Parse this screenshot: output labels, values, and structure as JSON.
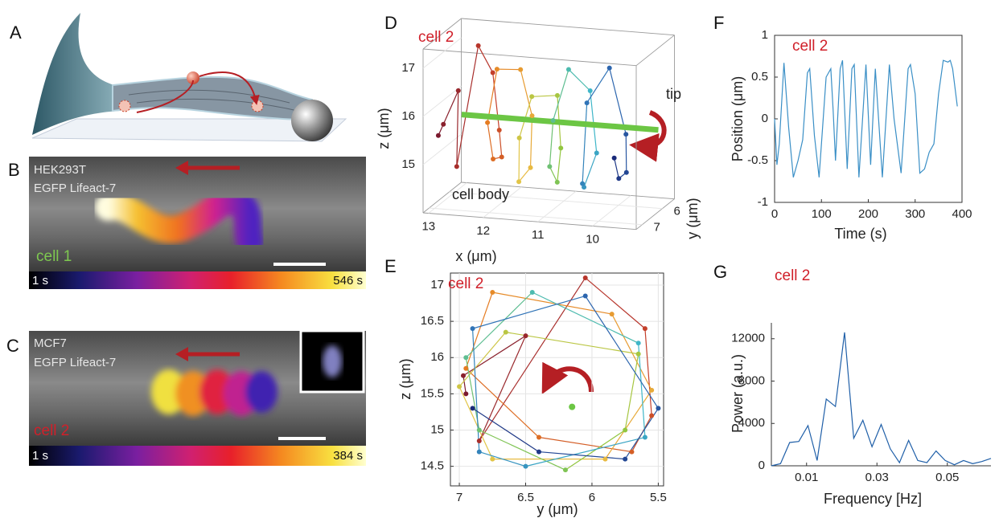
{
  "panel_labels": [
    "A",
    "B",
    "C",
    "D",
    "E",
    "F",
    "G"
  ],
  "panel_b": {
    "cell_line": "HEK293T",
    "marker": "EGFP Lifeact-7",
    "cell": "cell 1",
    "time_start": "1 s",
    "time_end": "546 s"
  },
  "panel_c": {
    "cell_line": "MCF7",
    "marker": "EGFP Lifeact-7",
    "cell": "cell 2",
    "time_start": "1 s",
    "time_end": "384 s"
  },
  "chart_data": [
    {
      "type": "scatter3d",
      "label": "cell 2",
      "annotations": [
        "tip",
        "cell body"
      ],
      "x_label": "x (μm)",
      "y_label": "y (μm)",
      "z_label": "z (μm)",
      "xlim": [
        13.1,
        9.2
      ],
      "ylim": [
        7.3,
        5.4
      ],
      "zlim": [
        14,
        17.4
      ],
      "xticks": [
        13,
        12,
        11,
        10
      ],
      "yticks": [
        6,
        7
      ],
      "zticks": [
        15,
        16,
        17
      ],
      "colors": [
        "#7b1a2e",
        "#c0392b",
        "#e67e22",
        "#e8c547",
        "#8cc63f",
        "#3fb8c9",
        "#2f6db5",
        "#1a2a7a"
      ],
      "x": [
        12.95,
        12.85,
        12.75,
        12.65,
        12.55,
        12.45,
        12.35,
        12.25,
        12.15,
        12.05,
        11.95,
        11.85,
        11.75,
        11.65,
        11.55,
        11.45,
        11.35,
        11.25,
        11.15,
        11.05,
        10.95,
        10.85,
        10.75,
        10.65,
        10.55,
        10.45,
        10.35,
        10.25,
        10.15,
        10.05,
        9.95,
        9.85,
        9.75
      ],
      "y": [
        6.95,
        6.97,
        6.5,
        6.85,
        6.05,
        5.6,
        5.55,
        5.7,
        6.4,
        6.95,
        6.75,
        5.85,
        5.55,
        5.9,
        6.75,
        7.0,
        6.65,
        5.65,
        5.75,
        6.2,
        6.85,
        6.95,
        6.45,
        5.65,
        5.6,
        6.5,
        6.85,
        6.9,
        6.05,
        5.5,
        5.75,
        6.4,
        6.9
      ],
      "z": [
        15.5,
        15.75,
        16.3,
        14.85,
        17.1,
        16.4,
        15.2,
        14.7,
        14.9,
        15.85,
        16.9,
        16.6,
        15.55,
        14.6,
        14.6,
        15.6,
        16.35,
        16.05,
        15.0,
        14.45,
        15.0,
        16.0,
        16.9,
        16.2,
        14.9,
        14.5,
        14.7,
        16.4,
        16.85,
        15.3,
        14.6,
        14.7,
        15.3
      ],
      "axis_line": {
        "color": "#6cc644",
        "x": [
          12.8,
          9.2
        ],
        "y": [
          6.2,
          6.2
        ],
        "z": [
          15.7,
          15.7
        ]
      }
    },
    {
      "type": "scatter_path",
      "label": "cell 2",
      "x_label": "y (μm)",
      "y_label": "z (μm)",
      "xlim": [
        7.067,
        5.46
      ],
      "ylim": [
        14.23,
        17.166
      ],
      "xticks": [
        7,
        6.5,
        6,
        5.5
      ],
      "yticks": [
        14.5,
        15,
        15.5,
        16,
        16.5,
        17
      ],
      "grid": true,
      "colors": [
        "#7b1a2e",
        "#c0392b",
        "#e67e22",
        "#e8c547",
        "#8cc63f",
        "#3fb8c9",
        "#2f6db5",
        "#1a2a7a"
      ],
      "x": [
        6.95,
        6.97,
        6.5,
        6.85,
        6.05,
        5.6,
        5.55,
        5.7,
        6.4,
        6.95,
        6.75,
        5.85,
        5.55,
        5.9,
        6.75,
        7.0,
        6.65,
        5.65,
        5.75,
        6.2,
        6.85,
        6.95,
        6.45,
        5.65,
        5.6,
        6.5,
        6.85,
        6.9,
        6.05,
        5.5,
        5.75,
        6.4,
        6.9
      ],
      "y": [
        15.5,
        15.75,
        16.3,
        14.85,
        17.1,
        16.4,
        15.2,
        14.7,
        14.9,
        15.85,
        16.9,
        16.6,
        15.55,
        14.6,
        14.6,
        15.6,
        16.35,
        16.05,
        15.0,
        14.45,
        15.0,
        16.0,
        16.9,
        16.2,
        14.9,
        14.5,
        14.7,
        16.4,
        16.85,
        15.3,
        14.6,
        14.7,
        15.3
      ],
      "center": {
        "color": "#6cc644",
        "x": [
          6.15
        ],
        "y": [
          15.32
        ]
      }
    },
    {
      "type": "line",
      "label": "cell 2",
      "x_label": "Time (s)",
      "y_label": "Position (μm)",
      "xlim": [
        0,
        400
      ],
      "ylim": [
        -1,
        1
      ],
      "xticks": [
        0,
        100,
        200,
        300,
        400
      ],
      "yticks": [
        -1,
        -0.5,
        0,
        0.5,
        1
      ],
      "color": "#3a8fc6",
      "x": [
        0,
        5,
        10,
        20,
        30,
        40,
        50,
        60,
        70,
        75,
        85,
        95,
        105,
        110,
        120,
        125,
        130,
        140,
        145,
        155,
        165,
        170,
        180,
        190,
        195,
        205,
        215,
        230,
        245,
        255,
        270,
        285,
        290,
        300,
        310,
        320,
        330,
        340,
        350,
        360,
        370,
        375,
        380,
        390
      ],
      "values": [
        0.0,
        -0.55,
        -0.3,
        0.67,
        -0.1,
        -0.7,
        -0.5,
        -0.25,
        0.55,
        0.6,
        -0.2,
        -0.7,
        0.1,
        0.5,
        0.6,
        0.1,
        -0.5,
        0.6,
        0.7,
        -0.6,
        0.6,
        0.65,
        -0.7,
        0.2,
        0.65,
        -0.55,
        0.6,
        -0.7,
        0.65,
        0.0,
        -0.65,
        0.6,
        0.65,
        0.3,
        -0.65,
        -0.6,
        -0.4,
        -0.3,
        0.3,
        0.7,
        0.68,
        0.7,
        0.6,
        0.15
      ]
    },
    {
      "type": "line",
      "label": "cell 2",
      "x_label": "Frequency [Hz]",
      "y_label": "Power (a.u.)",
      "xlim": [
        0,
        0.0624
      ],
      "ylim": [
        0,
        13500
      ],
      "xticks": [
        0.01,
        0.03,
        0.05
      ],
      "yticks": [
        0,
        4000,
        8000,
        12000
      ],
      "color": "#1f5fa8",
      "x": [
        0,
        0.0026,
        0.0052,
        0.0078,
        0.0104,
        0.013,
        0.0156,
        0.0182,
        0.0208,
        0.0234,
        0.026,
        0.0286,
        0.0312,
        0.0338,
        0.0364,
        0.039,
        0.0416,
        0.0442,
        0.0468,
        0.0494,
        0.052,
        0.0546,
        0.0572,
        0.0598,
        0.0624
      ],
      "values": [
        0,
        200,
        2200,
        2300,
        3800,
        500,
        6300,
        5600,
        12600,
        2600,
        4300,
        1800,
        3900,
        1600,
        300,
        2400,
        500,
        300,
        1400,
        500,
        100,
        500,
        200,
        400,
        700
      ]
    }
  ]
}
